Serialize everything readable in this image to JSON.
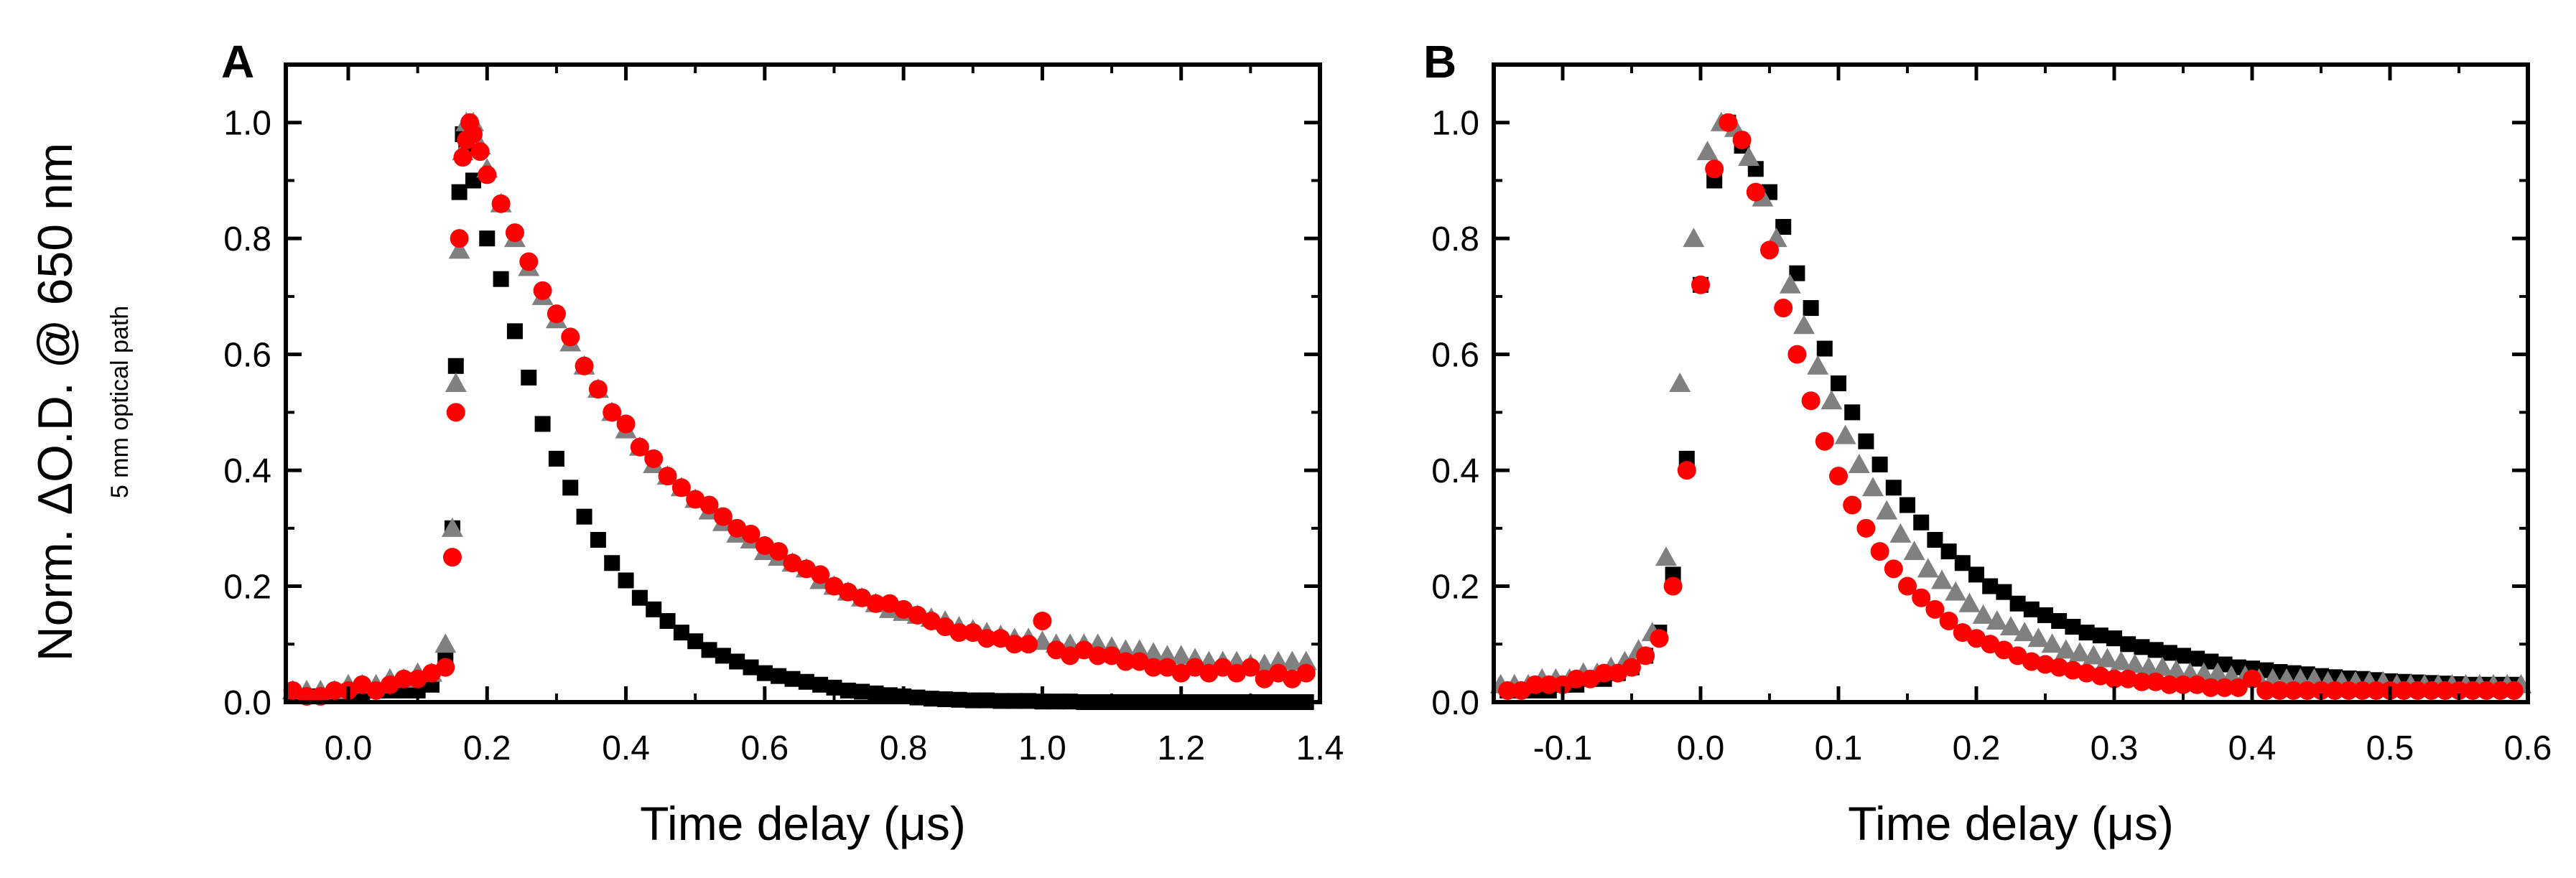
{
  "figure": {
    "ylabel": "Norm. ΔO.D. @ 650 nm",
    "ylabel_sub": "5 mm optical path"
  },
  "colors": {
    "black": "#000000",
    "gray": "#808080",
    "red": "#ff0000"
  },
  "chart_data": [
    {
      "type": "scatter",
      "panel": "A",
      "xlabel": "Time delay (μs)",
      "xlim": [
        -0.09,
        1.4
      ],
      "ylim": [
        0.0,
        1.1
      ],
      "xticks": [
        0.0,
        0.2,
        0.4,
        0.6,
        0.8,
        1.0,
        1.2,
        1.4
      ],
      "xtick_labels": [
        "0.0",
        "0.2",
        "0.4",
        "0.6",
        "0.8",
        "1.0",
        "1.2",
        "1.4"
      ],
      "yticks": [
        0.0,
        0.2,
        0.4,
        0.6,
        0.8,
        1.0
      ],
      "ytick_labels": [
        "0.0",
        "0.2",
        "0.4",
        "0.6",
        "0.8",
        "1.0"
      ],
      "series": [
        {
          "name": "black squares",
          "marker": "square",
          "color": "#000000",
          "x": [
            -0.08,
            -0.06,
            -0.04,
            -0.02,
            0.0,
            0.02,
            0.04,
            0.06,
            0.08,
            0.1,
            0.12,
            0.14,
            0.15,
            0.155,
            0.16,
            0.165,
            0.17,
            0.18,
            0.2,
            0.22,
            0.24,
            0.26,
            0.28,
            0.3,
            0.32,
            0.34,
            0.36,
            0.38,
            0.4,
            0.42,
            0.44,
            0.46,
            0.48,
            0.5,
            0.52,
            0.54,
            0.56,
            0.58,
            0.6,
            0.62,
            0.64,
            0.66,
            0.68,
            0.7,
            0.72,
            0.74,
            0.76,
            0.78,
            0.8,
            0.82,
            0.84,
            0.86,
            0.88,
            0.9,
            0.92,
            0.94,
            0.96,
            0.98,
            1.0,
            1.02,
            1.04,
            1.06,
            1.08,
            1.1,
            1.12,
            1.14,
            1.16,
            1.18,
            1.2,
            1.22,
            1.24,
            1.26,
            1.28,
            1.3,
            1.32,
            1.34,
            1.36,
            1.38
          ],
          "y": [
            0.01,
            0.01,
            0.01,
            0.01,
            0.01,
            0.01,
            0.02,
            0.02,
            0.02,
            0.02,
            0.03,
            0.08,
            0.3,
            0.58,
            0.88,
            0.98,
            0.96,
            0.9,
            0.8,
            0.73,
            0.64,
            0.56,
            0.48,
            0.42,
            0.37,
            0.32,
            0.28,
            0.24,
            0.21,
            0.18,
            0.16,
            0.14,
            0.12,
            0.105,
            0.09,
            0.08,
            0.07,
            0.06,
            0.05,
            0.045,
            0.04,
            0.035,
            0.03,
            0.025,
            0.02,
            0.018,
            0.015,
            0.012,
            0.01,
            0.008,
            0.006,
            0.005,
            0.004,
            0.003,
            0.003,
            0.002,
            0.002,
            0.002,
            0.001,
            0.001,
            0.001,
            0.0,
            0.0,
            0.0,
            0.0,
            0.0,
            0.0,
            0.0,
            0.0,
            0.0,
            0.0,
            0.0,
            0.0,
            0.0,
            0.0,
            0.0,
            0.0,
            0.0
          ]
        },
        {
          "name": "gray triangles",
          "marker": "triangle",
          "color": "#808080",
          "x": [
            -0.08,
            -0.06,
            -0.04,
            -0.02,
            0.0,
            0.02,
            0.04,
            0.06,
            0.08,
            0.1,
            0.12,
            0.14,
            0.15,
            0.155,
            0.16,
            0.165,
            0.17,
            0.18,
            0.19,
            0.2,
            0.22,
            0.24,
            0.26,
            0.28,
            0.3,
            0.32,
            0.34,
            0.36,
            0.38,
            0.4,
            0.42,
            0.44,
            0.46,
            0.48,
            0.5,
            0.52,
            0.54,
            0.56,
            0.58,
            0.6,
            0.62,
            0.64,
            0.66,
            0.68,
            0.7,
            0.72,
            0.74,
            0.76,
            0.78,
            0.8,
            0.82,
            0.84,
            0.86,
            0.88,
            0.9,
            0.92,
            0.94,
            0.96,
            0.98,
            1.0,
            1.02,
            1.04,
            1.06,
            1.08,
            1.1,
            1.12,
            1.14,
            1.16,
            1.18,
            1.2,
            1.22,
            1.24,
            1.26,
            1.28,
            1.3,
            1.32,
            1.34,
            1.36,
            1.38
          ],
          "y": [
            0.02,
            0.02,
            0.02,
            0.02,
            0.03,
            0.03,
            0.03,
            0.04,
            0.04,
            0.05,
            0.05,
            0.1,
            0.3,
            0.55,
            0.78,
            0.95,
            1.0,
            1.0,
            0.96,
            0.92,
            0.86,
            0.8,
            0.75,
            0.7,
            0.66,
            0.62,
            0.58,
            0.54,
            0.5,
            0.47,
            0.44,
            0.41,
            0.39,
            0.37,
            0.35,
            0.33,
            0.31,
            0.29,
            0.28,
            0.26,
            0.25,
            0.24,
            0.23,
            0.21,
            0.2,
            0.19,
            0.18,
            0.17,
            0.16,
            0.155,
            0.15,
            0.145,
            0.14,
            0.13,
            0.125,
            0.12,
            0.115,
            0.11,
            0.11,
            0.105,
            0.1,
            0.1,
            0.1,
            0.1,
            0.095,
            0.09,
            0.09,
            0.085,
            0.08,
            0.08,
            0.075,
            0.07,
            0.07,
            0.07,
            0.065,
            0.065,
            0.07,
            0.07,
            0.07
          ]
        },
        {
          "name": "red circles",
          "marker": "circle",
          "color": "#ff0000",
          "x": [
            -0.08,
            -0.06,
            -0.04,
            -0.02,
            0.0,
            0.02,
            0.04,
            0.06,
            0.08,
            0.1,
            0.12,
            0.14,
            0.15,
            0.155,
            0.16,
            0.165,
            0.17,
            0.175,
            0.18,
            0.19,
            0.2,
            0.22,
            0.24,
            0.26,
            0.28,
            0.3,
            0.32,
            0.34,
            0.36,
            0.38,
            0.4,
            0.42,
            0.44,
            0.46,
            0.48,
            0.5,
            0.52,
            0.54,
            0.56,
            0.58,
            0.6,
            0.62,
            0.64,
            0.66,
            0.68,
            0.7,
            0.72,
            0.74,
            0.76,
            0.78,
            0.8,
            0.82,
            0.84,
            0.86,
            0.88,
            0.9,
            0.92,
            0.94,
            0.96,
            0.98,
            1.0,
            1.02,
            1.04,
            1.06,
            1.08,
            1.1,
            1.12,
            1.14,
            1.16,
            1.18,
            1.2,
            1.22,
            1.24,
            1.26,
            1.28,
            1.3,
            1.32,
            1.34,
            1.36,
            1.38
          ],
          "y": [
            0.02,
            0.01,
            0.01,
            0.02,
            0.02,
            0.03,
            0.02,
            0.03,
            0.04,
            0.04,
            0.05,
            0.06,
            0.25,
            0.5,
            0.8,
            0.94,
            0.97,
            1.0,
            0.98,
            0.95,
            0.91,
            0.86,
            0.81,
            0.76,
            0.71,
            0.67,
            0.63,
            0.58,
            0.54,
            0.5,
            0.48,
            0.44,
            0.42,
            0.39,
            0.37,
            0.35,
            0.34,
            0.32,
            0.3,
            0.29,
            0.27,
            0.26,
            0.24,
            0.23,
            0.22,
            0.2,
            0.19,
            0.18,
            0.17,
            0.17,
            0.16,
            0.15,
            0.14,
            0.13,
            0.12,
            0.12,
            0.11,
            0.11,
            0.1,
            0.1,
            0.14,
            0.09,
            0.08,
            0.09,
            0.08,
            0.08,
            0.07,
            0.07,
            0.06,
            0.06,
            0.05,
            0.06,
            0.05,
            0.06,
            0.05,
            0.06,
            0.04,
            0.05,
            0.04,
            0.05
          ]
        }
      ]
    },
    {
      "type": "scatter",
      "panel": "B",
      "xlabel": "Time delay (μs)",
      "xlim": [
        -0.15,
        0.6
      ],
      "ylim": [
        0.0,
        1.1
      ],
      "xticks": [
        -0.1,
        0.0,
        0.1,
        0.2,
        0.3,
        0.4,
        0.5,
        0.6
      ],
      "xtick_labels": [
        "-0.1",
        "0.0",
        "0.1",
        "0.2",
        "0.3",
        "0.4",
        "0.5",
        "0.6"
      ],
      "yticks": [
        0.0,
        0.2,
        0.4,
        0.6,
        0.8,
        1.0
      ],
      "ytick_labels": [
        "0.0",
        "0.2",
        "0.4",
        "0.6",
        "0.8",
        "1.0"
      ],
      "series": [
        {
          "name": "black squares",
          "marker": "square",
          "color": "#000000",
          "x": [
            -0.14,
            -0.13,
            -0.12,
            -0.11,
            -0.1,
            -0.09,
            -0.08,
            -0.07,
            -0.06,
            -0.05,
            -0.04,
            -0.03,
            -0.02,
            -0.01,
            0.0,
            0.01,
            0.02,
            0.03,
            0.04,
            0.05,
            0.06,
            0.07,
            0.08,
            0.09,
            0.1,
            0.11,
            0.12,
            0.13,
            0.14,
            0.15,
            0.16,
            0.17,
            0.18,
            0.19,
            0.2,
            0.21,
            0.22,
            0.23,
            0.24,
            0.25,
            0.26,
            0.27,
            0.28,
            0.29,
            0.3,
            0.31,
            0.32,
            0.33,
            0.34,
            0.35,
            0.36,
            0.37,
            0.38,
            0.39,
            0.4,
            0.41,
            0.42,
            0.43,
            0.44,
            0.45,
            0.46,
            0.47,
            0.48,
            0.49,
            0.5,
            0.51,
            0.52,
            0.53,
            0.54,
            0.55,
            0.56,
            0.57,
            0.58,
            0.59
          ],
          "y": [
            0.02,
            0.02,
            0.02,
            0.02,
            0.03,
            0.03,
            0.04,
            0.04,
            0.05,
            0.06,
            0.08,
            0.12,
            0.22,
            0.42,
            0.72,
            0.9,
            1.0,
            0.96,
            0.92,
            0.88,
            0.82,
            0.74,
            0.68,
            0.61,
            0.55,
            0.5,
            0.45,
            0.41,
            0.37,
            0.34,
            0.31,
            0.28,
            0.26,
            0.24,
            0.22,
            0.2,
            0.19,
            0.17,
            0.16,
            0.15,
            0.14,
            0.13,
            0.12,
            0.115,
            0.11,
            0.1,
            0.095,
            0.09,
            0.085,
            0.08,
            0.075,
            0.07,
            0.065,
            0.06,
            0.058,
            0.055,
            0.052,
            0.05,
            0.048,
            0.045,
            0.043,
            0.041,
            0.04,
            0.038,
            0.036,
            0.035,
            0.034,
            0.033,
            0.032,
            0.031,
            0.03,
            0.03,
            0.03,
            0.03
          ]
        },
        {
          "name": "gray triangles",
          "marker": "triangle",
          "color": "#808080",
          "x": [
            -0.145,
            -0.135,
            -0.125,
            -0.115,
            -0.105,
            -0.095,
            -0.085,
            -0.075,
            -0.065,
            -0.055,
            -0.045,
            -0.035,
            -0.025,
            -0.015,
            -0.005,
            0.005,
            0.015,
            0.025,
            0.035,
            0.045,
            0.055,
            0.065,
            0.075,
            0.085,
            0.095,
            0.105,
            0.115,
            0.125,
            0.135,
            0.145,
            0.155,
            0.165,
            0.175,
            0.185,
            0.195,
            0.205,
            0.215,
            0.225,
            0.235,
            0.245,
            0.255,
            0.265,
            0.275,
            0.285,
            0.295,
            0.305,
            0.315,
            0.325,
            0.335,
            0.345,
            0.355,
            0.365,
            0.375,
            0.385,
            0.395,
            0.405,
            0.415,
            0.425,
            0.435,
            0.445,
            0.455,
            0.465,
            0.475,
            0.485,
            0.495,
            0.505,
            0.515,
            0.525,
            0.535,
            0.545,
            0.555,
            0.565,
            0.575,
            0.585,
            0.595
          ],
          "y": [
            0.03,
            0.03,
            0.03,
            0.04,
            0.04,
            0.04,
            0.05,
            0.05,
            0.06,
            0.07,
            0.09,
            0.12,
            0.25,
            0.55,
            0.8,
            0.95,
            1.0,
            0.99,
            0.94,
            0.87,
            0.8,
            0.72,
            0.65,
            0.58,
            0.52,
            0.46,
            0.41,
            0.37,
            0.33,
            0.29,
            0.26,
            0.23,
            0.21,
            0.19,
            0.17,
            0.15,
            0.14,
            0.13,
            0.12,
            0.11,
            0.1,
            0.09,
            0.085,
            0.08,
            0.075,
            0.07,
            0.065,
            0.06,
            0.06,
            0.055,
            0.05,
            0.05,
            0.05,
            0.045,
            0.045,
            0.04,
            0.04,
            0.04,
            0.04,
            0.04,
            0.035,
            0.035,
            0.035,
            0.035,
            0.035,
            0.03,
            0.03,
            0.03,
            0.03,
            0.03,
            0.03,
            0.03,
            0.03,
            0.03,
            0.03
          ]
        },
        {
          "name": "red circles",
          "marker": "circle",
          "color": "#ff0000",
          "x": [
            -0.14,
            -0.13,
            -0.12,
            -0.11,
            -0.1,
            -0.09,
            -0.08,
            -0.07,
            -0.06,
            -0.05,
            -0.04,
            -0.03,
            -0.02,
            -0.01,
            0.0,
            0.01,
            0.02,
            0.03,
            0.04,
            0.05,
            0.06,
            0.07,
            0.08,
            0.09,
            0.1,
            0.11,
            0.12,
            0.13,
            0.14,
            0.15,
            0.16,
            0.17,
            0.18,
            0.19,
            0.2,
            0.21,
            0.22,
            0.23,
            0.24,
            0.25,
            0.26,
            0.27,
            0.28,
            0.29,
            0.3,
            0.31,
            0.32,
            0.33,
            0.34,
            0.35,
            0.36,
            0.37,
            0.38,
            0.39,
            0.4,
            0.41,
            0.42,
            0.43,
            0.44,
            0.45,
            0.46,
            0.47,
            0.48,
            0.49,
            0.5,
            0.51,
            0.52,
            0.53,
            0.54,
            0.55,
            0.56,
            0.57,
            0.58,
            0.59
          ],
          "y": [
            0.02,
            0.02,
            0.03,
            0.03,
            0.03,
            0.04,
            0.04,
            0.05,
            0.05,
            0.06,
            0.08,
            0.11,
            0.2,
            0.4,
            0.72,
            0.92,
            1.0,
            0.97,
            0.88,
            0.78,
            0.68,
            0.6,
            0.52,
            0.45,
            0.39,
            0.34,
            0.3,
            0.26,
            0.23,
            0.2,
            0.18,
            0.16,
            0.14,
            0.12,
            0.11,
            0.1,
            0.09,
            0.08,
            0.07,
            0.065,
            0.06,
            0.055,
            0.05,
            0.045,
            0.04,
            0.04,
            0.035,
            0.035,
            0.03,
            0.03,
            0.03,
            0.025,
            0.025,
            0.025,
            0.04,
            0.02,
            0.02,
            0.02,
            0.02,
            0.02,
            0.02,
            0.02,
            0.02,
            0.02,
            0.02,
            0.02,
            0.02,
            0.02,
            0.02,
            0.02,
            0.02,
            0.02,
            0.02,
            0.02
          ]
        }
      ]
    }
  ]
}
